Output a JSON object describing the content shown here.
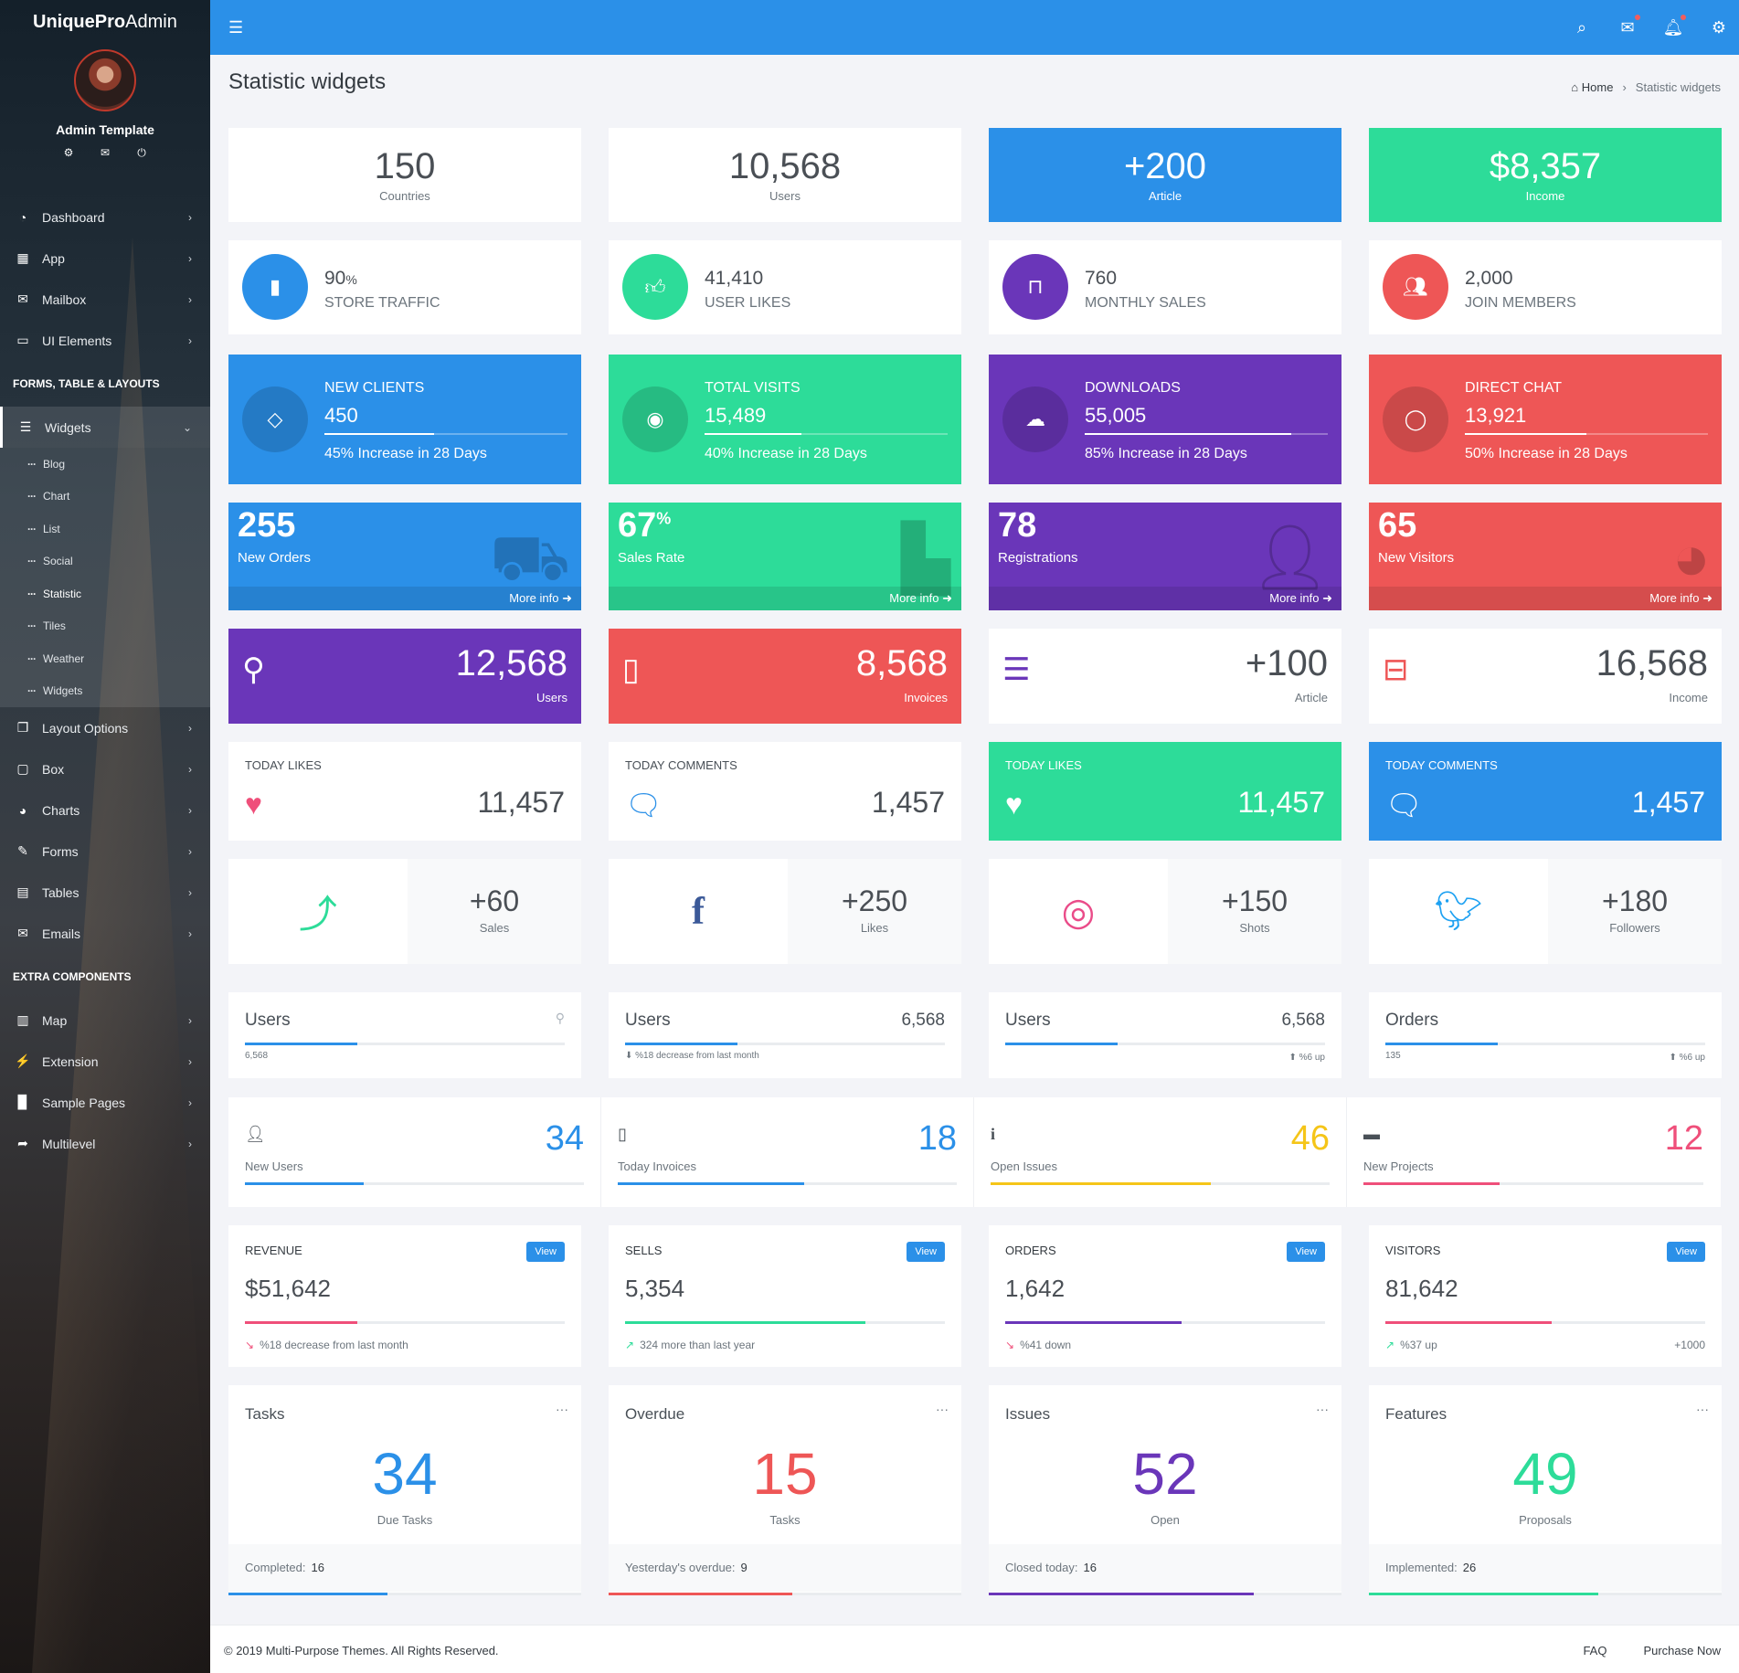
{
  "sidebar": {
    "brand_bold": "UniquePro",
    "brand_rest": " Admin",
    "user_name": "Admin Template",
    "user_icons": [
      "gear-icon",
      "mail-icon",
      "power-icon"
    ],
    "menu_top": [
      {
        "label": "Dashboard",
        "icon": "dashboard-icon"
      },
      {
        "label": "App",
        "icon": "grid-icon"
      },
      {
        "label": "Mailbox",
        "icon": "envelope-icon"
      },
      {
        "label": "UI Elements",
        "icon": "laptop-icon"
      }
    ],
    "section1": "FORMS, TABLE & LAYOUTS",
    "active": {
      "label": "Widgets",
      "icon": "bars-icon"
    },
    "sub_items": [
      "Blog",
      "Chart",
      "List",
      "Social",
      "Statistic",
      "Tiles",
      "Weather",
      "Widgets"
    ],
    "menu_mid": [
      {
        "label": "Layout Options",
        "icon": "copy-icon"
      },
      {
        "label": "Box",
        "icon": "square-icon"
      },
      {
        "label": "Charts",
        "icon": "pie-icon"
      },
      {
        "label": "Forms",
        "icon": "edit-icon"
      },
      {
        "label": "Tables",
        "icon": "table-icon"
      },
      {
        "label": "Emails",
        "icon": "envelope-open-icon"
      }
    ],
    "section2": "EXTRA COMPONENTS",
    "menu_bottom": [
      {
        "label": "Map",
        "icon": "map-icon"
      },
      {
        "label": "Extension",
        "icon": "plug-icon"
      },
      {
        "label": "Sample Pages",
        "icon": "file-icon"
      },
      {
        "label": "Multilevel",
        "icon": "share-icon"
      }
    ]
  },
  "header": {
    "icons": [
      "search-icon",
      "mail-icon",
      "bell-icon",
      "gear-icon"
    ]
  },
  "page": {
    "title": "Statistic widgets",
    "breadcrumb_home": "Home",
    "breadcrumb_sep": "›",
    "breadcrumb_current": "Statistic widgets"
  },
  "row1": [
    {
      "value": "150",
      "label": "Countries"
    },
    {
      "value": "10,568",
      "label": "Users"
    },
    {
      "value": "+200",
      "label": "Article"
    },
    {
      "value": "$8,357",
      "label": "Income"
    }
  ],
  "row2": [
    {
      "value": "90",
      "unit": "%",
      "label": "STORE TRAFFIC",
      "color": "#2b90e8"
    },
    {
      "value": "41,410",
      "unit": "",
      "label": "USER LIKES",
      "color": "#2ddc99"
    },
    {
      "value": "760",
      "unit": "",
      "label": "MONTHLY SALES",
      "color": "#6a36b9"
    },
    {
      "value": "2,000",
      "unit": "",
      "label": "JOIN MEMBERS",
      "color": "#ee5656"
    }
  ],
  "row3": [
    {
      "title": "NEW CLIENTS",
      "value": "450",
      "progress": 0.45,
      "sub": "45% Increase in 28 Days"
    },
    {
      "title": "TOTAL VISITS",
      "value": "15,489",
      "progress": 0.4,
      "sub": "40% Increase in 28 Days"
    },
    {
      "title": "DOWNLOADS",
      "value": "55,005",
      "progress": 0.85,
      "sub": "85% Increase in 28 Days"
    },
    {
      "title": "DIRECT CHAT",
      "value": "13,921",
      "progress": 0.5,
      "sub": "50% Increase in 28 Days"
    }
  ],
  "row4": [
    {
      "value": "255",
      "unit": "",
      "label": "New Orders",
      "more": "More info ➜"
    },
    {
      "value": "67",
      "unit": "%",
      "label": "Sales Rate",
      "more": "More info ➜"
    },
    {
      "value": "78",
      "unit": "",
      "label": "Registrations",
      "more": "More info ➜"
    },
    {
      "value": "65",
      "unit": "",
      "label": "New Visitors",
      "more": "More info ➜"
    }
  ],
  "row5": [
    {
      "value": "12,568",
      "label": "Users"
    },
    {
      "value": "8,568",
      "label": "Invoices"
    },
    {
      "value": "+100",
      "label": "Article"
    },
    {
      "value": "16,568",
      "label": "Income"
    }
  ],
  "row6": [
    {
      "title": "TODAY LIKES",
      "value": "11,457"
    },
    {
      "title": "TODAY COMMENTS",
      "value": "1,457"
    },
    {
      "title": "TODAY LIKES",
      "value": "11,457"
    },
    {
      "title": "TODAY COMMENTS",
      "value": "1,457"
    }
  ],
  "row7": [
    {
      "value": "+60",
      "label": "Sales"
    },
    {
      "value": "+250",
      "label": "Likes"
    },
    {
      "value": "+150",
      "label": "Shots"
    },
    {
      "value": "+180",
      "label": "Followers"
    }
  ],
  "row8": [
    {
      "title": "Users",
      "value": "",
      "progress": 0.35,
      "sub_left": "6,568",
      "sub_right": ""
    },
    {
      "title": "Users",
      "value": "6,568",
      "progress": 0.35,
      "sub_left": "⬇ %18 decrease from last month",
      "sub_right": ""
    },
    {
      "title": "Users",
      "value": "6,568",
      "progress": 0.35,
      "sub_left": "",
      "sub_right": "⬆ %6 up"
    },
    {
      "title": "Orders",
      "value": "",
      "progress": 0.35,
      "sub_left": "135",
      "sub_right": "⬆ %6 up"
    }
  ],
  "row9": [
    {
      "label": "New Users",
      "value": "34",
      "progress": 0.35,
      "color": "#2b90e8"
    },
    {
      "label": "Today Invoices",
      "value": "18",
      "progress": 0.55,
      "color": "#2b90e8"
    },
    {
      "label": "Open Issues",
      "value": "46",
      "progress": 0.65,
      "color": "#f5c518"
    },
    {
      "label": "New Projects",
      "value": "12",
      "progress": 0.4,
      "color": "#ef4f7a"
    }
  ],
  "row10": [
    {
      "title": "REVENUE",
      "button": "View",
      "value": "$51,642",
      "progress": 0.35,
      "color": "#ef4f7a",
      "sub": "%18 decrease from last month",
      "sub_right": ""
    },
    {
      "title": "SELLS",
      "button": "View",
      "value": "5,354",
      "progress": 0.75,
      "color": "#2ddc99",
      "sub": "324 more than last year",
      "sub_right": ""
    },
    {
      "title": "ORDERS",
      "button": "View",
      "value": "1,642",
      "progress": 0.55,
      "color": "#6a36b9",
      "sub": "%41 down",
      "sub_right": ""
    },
    {
      "title": "VISITORS",
      "button": "View",
      "value": "81,642",
      "progress": 0.52,
      "color": "#ef4f7a",
      "sub": "%37 up",
      "sub_right": "+1000"
    }
  ],
  "row11": [
    {
      "title": "Tasks",
      "value": "34",
      "label": "Due Tasks",
      "foot": "Completed:",
      "foot_n": "16",
      "color": "#2b90e8",
      "progress": 0.45
    },
    {
      "title": "Overdue",
      "value": "15",
      "label": "Tasks",
      "foot": "Yesterday's overdue:",
      "foot_n": "9",
      "color": "#ee5656",
      "progress": 0.52
    },
    {
      "title": "Issues",
      "value": "52",
      "label": "Open",
      "foot": "Closed today:",
      "foot_n": "16",
      "color": "#6a36b9",
      "progress": 0.75
    },
    {
      "title": "Features",
      "value": "49",
      "label": "Proposals",
      "foot": "Implemented:",
      "foot_n": "26",
      "color": "#2ddc99",
      "progress": 0.65
    }
  ],
  "footer": {
    "copy": "© 2019 Multi-Purpose Themes. All Rights Reserved.",
    "faq": "FAQ",
    "purchase": "Purchase Now"
  }
}
